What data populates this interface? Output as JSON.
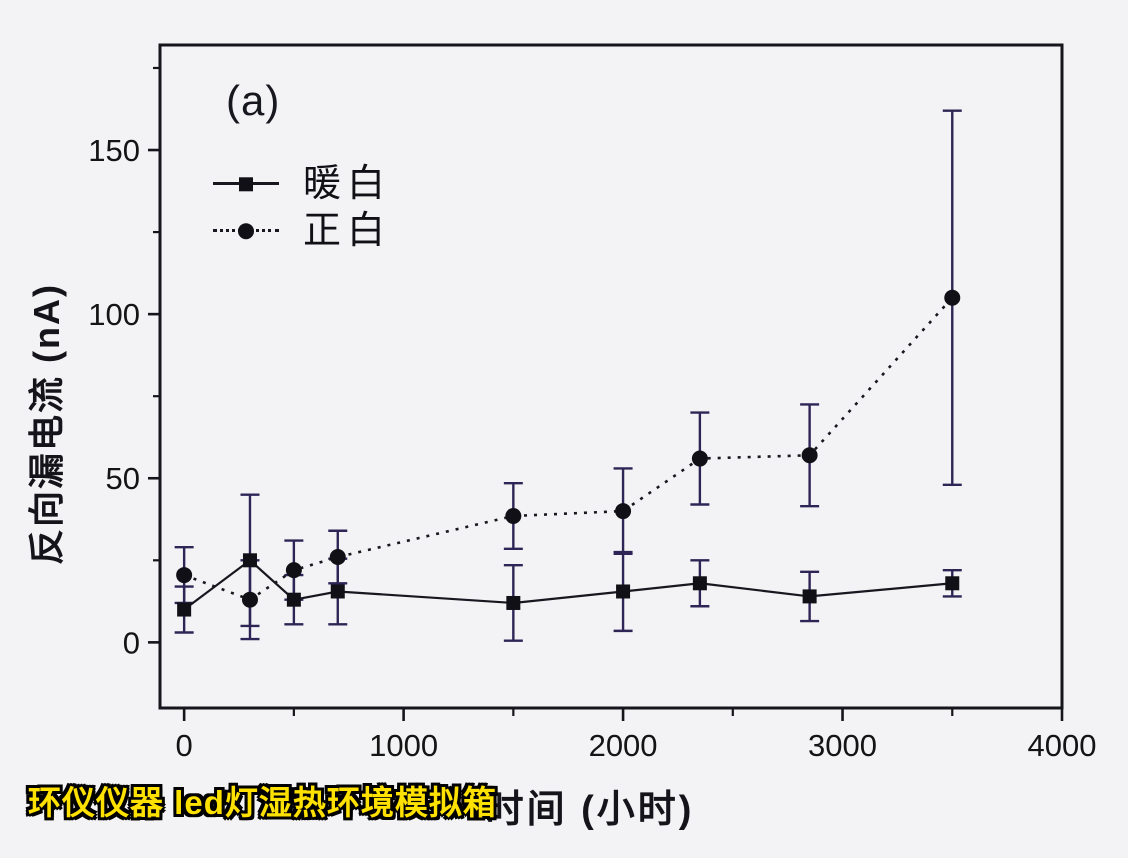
{
  "page": {
    "background": "#f3f3f5"
  },
  "panel_label": "(a)",
  "watermark": {
    "text": "环仪仪器 led灯湿热环境模拟箱",
    "color": "#ffe100"
  },
  "legend": {
    "items": [
      {
        "label": "暖白"
      },
      {
        "label": "正白"
      }
    ]
  },
  "chart_data": {
    "type": "line",
    "title": "",
    "xlabel": "时间 (小时)",
    "ylabel": "反向漏电流 (nA)",
    "xlim": [
      -110,
      4000
    ],
    "ylim": [
      -20,
      182
    ],
    "grid": false,
    "legend_position": "upper-left-inside",
    "x_major_ticks": [
      0,
      1000,
      2000,
      3000,
      4000
    ],
    "x_minor_ticks": [
      500,
      1500,
      2500,
      3500
    ],
    "y_major_ticks": [
      0,
      50,
      100,
      150
    ],
    "y_minor_ticks": [
      25,
      75,
      125,
      175
    ],
    "x": [
      0,
      300,
      500,
      700,
      1500,
      2000,
      2350,
      2850,
      3500
    ],
    "series": [
      {
        "name": "暖白",
        "marker": "square",
        "line": "solid",
        "values": [
          10,
          25,
          13,
          15.5,
          12,
          15.5,
          18,
          14,
          18
        ],
        "errors": [
          7,
          20,
          7.5,
          10,
          11.5,
          12,
          7,
          7.5,
          4
        ]
      },
      {
        "name": "正白",
        "marker": "circle",
        "line": "dotted",
        "values": [
          20.5,
          13,
          22,
          26,
          38.5,
          40,
          56,
          57,
          105
        ],
        "errors": [
          8.5,
          12,
          9,
          8,
          10,
          13,
          14,
          15.5,
          57
        ]
      }
    ],
    "colors": {
      "line": "#17171f",
      "marker": "#101016",
      "error_bar": "#2e2456",
      "frame": "#15151c",
      "tick_label": "#141414"
    }
  }
}
